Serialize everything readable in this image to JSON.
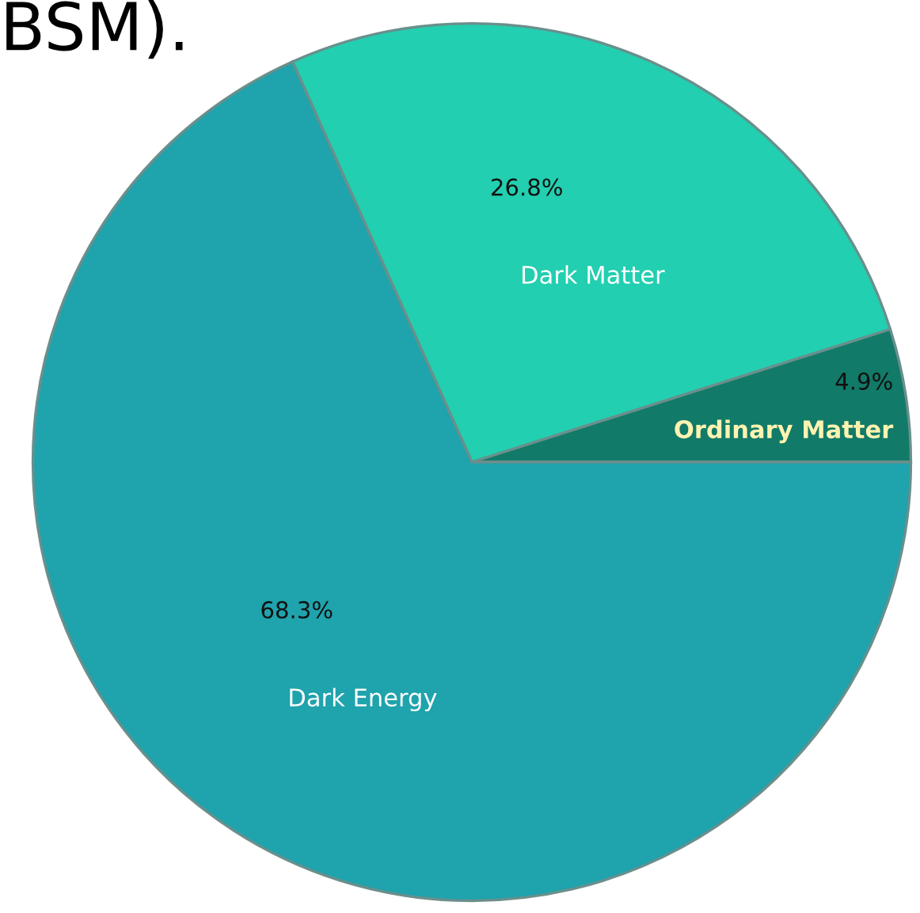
{
  "chart_data": {
    "type": "pie",
    "categories": [
      "Ordinary Matter",
      "Dark Matter",
      "Dark Energy"
    ],
    "values": [
      4.9,
      26.8,
      68.3
    ],
    "colors": [
      "#127a68",
      "#22cfb0",
      "#1fa3ad"
    ],
    "value_labels": [
      "4.9%",
      "26.8%",
      "68.3%"
    ],
    "annotations": [
      "BSM)."
    ]
  }
}
